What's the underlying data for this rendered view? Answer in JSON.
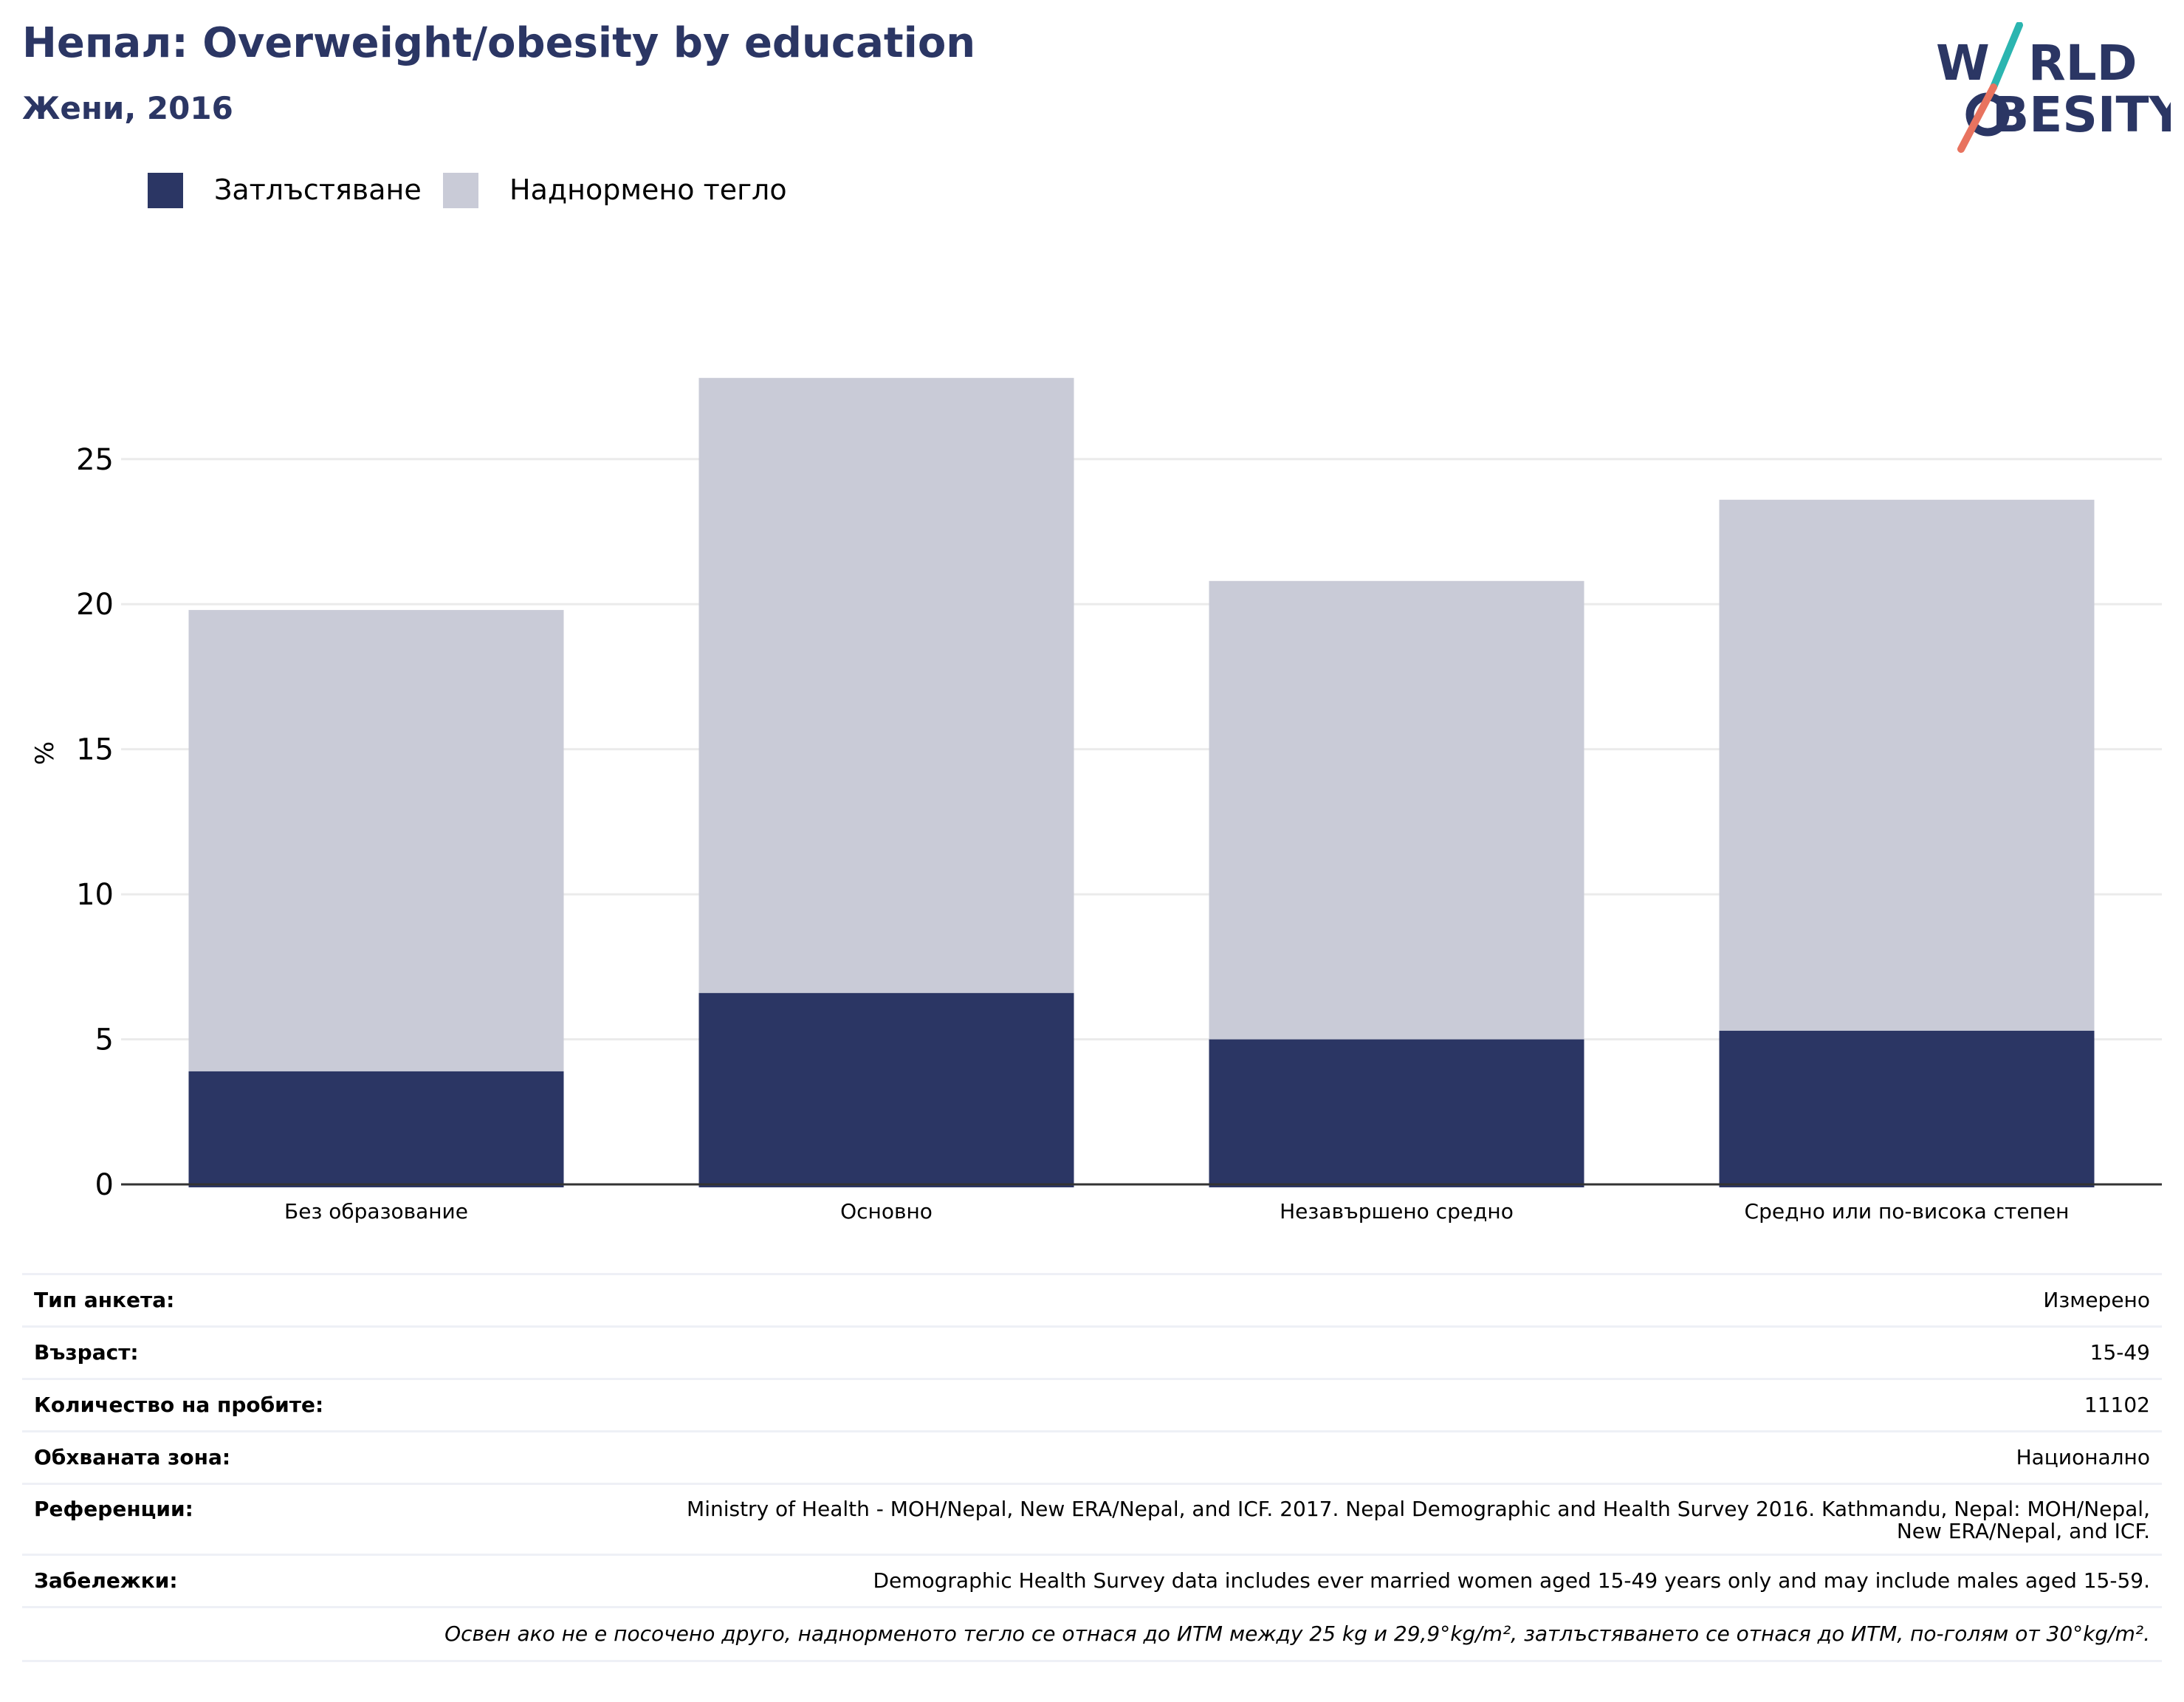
{
  "header": {
    "title": "Непал: Overweight/obesity by education",
    "subtitle": "Жени, 2016"
  },
  "logo": {
    "line1": "W",
    "line1_rest": "RLD",
    "line2_rest": "BESITY",
    "colors": {
      "text": "#2b3664",
      "slash_teal": "#2bb5b0",
      "slash_coral": "#e8735f"
    }
  },
  "chart_data": {
    "type": "bar",
    "stacked": true,
    "categories": [
      "Без образование",
      "Основно",
      "Незавършено средно",
      "Средно или по-висока степен"
    ],
    "series": [
      {
        "name": "Затлъстяване",
        "color": "#2b3664",
        "values": [
          3.9,
          6.6,
          5.0,
          5.3
        ]
      },
      {
        "name": "Наднормено тегло",
        "color": "#c9cbd7",
        "values": [
          15.9,
          21.2,
          15.8,
          18.3
        ]
      }
    ],
    "ylabel": "%",
    "ylim": [
      0,
      29.5
    ],
    "yticks": [
      0,
      5,
      10,
      15,
      20,
      25
    ],
    "grid": true,
    "legend_position": "top-left"
  },
  "meta": {
    "rows": [
      {
        "key": "Тип анкета:",
        "value": "Измерено"
      },
      {
        "key": "Възраст:",
        "value": "15-49"
      },
      {
        "key": "Количество на пробите:",
        "value": "11102"
      },
      {
        "key": "Обхваната зона:",
        "value": "Национално"
      },
      {
        "key": "Референции:",
        "value_line1": "Ministry of Health - MOH/Nepal, New ERA/Nepal, and ICF. 2017. Nepal Demographic and Health Survey 2016. Kathmandu, Nepal: MOH/Nepal,",
        "value_line2": "New ERA/Nepal, and ICF."
      },
      {
        "key": "Забележки:",
        "value": "Demographic Health Survey data includes ever married women aged 15-49 years only and may include males aged 15-59."
      }
    ],
    "footnote": "Освен ако не е посочено друго, наднорменото тегло се отнася до ИТМ между 25 kg и 29,9°kg/m², затлъстяването се отнася до ИТМ, по-голям от 30°kg/m²."
  }
}
